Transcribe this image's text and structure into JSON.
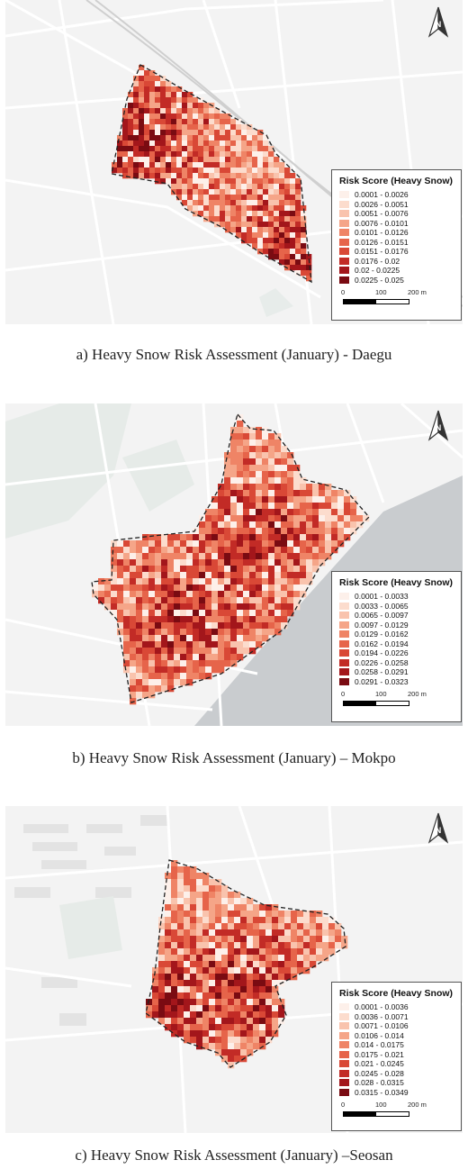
{
  "panels": [
    {
      "id": "daegu",
      "caption": "a) Heavy Snow Risk Assessment (January) - Daegu",
      "legend_title": "Risk Score (Heavy Snow)",
      "classes": [
        "0.0001 - 0.0026",
        "0.0026 - 0.0051",
        "0.0051 - 0.0076",
        "0.0076 - 0.0101",
        "0.0101 - 0.0126",
        "0.0126 - 0.0151",
        "0.0151 - 0.0176",
        "0.0176 - 0.02",
        "0.02 - 0.0225",
        "0.0225 - 0.025"
      ],
      "scale_labels": [
        "0",
        "100",
        "200 m"
      ]
    },
    {
      "id": "mokpo",
      "caption": "b) Heavy Snow Risk Assessment (January) – Mokpo",
      "legend_title": "Risk Score (Heavy Snow)",
      "classes": [
        "0.0001 - 0.0033",
        "0.0033 - 0.0065",
        "0.0065 - 0.0097",
        "0.0097 - 0.0129",
        "0.0129 - 0.0162",
        "0.0162 - 0.0194",
        "0.0194 - 0.0226",
        "0.0226 - 0.0258",
        "0.0258 - 0.0291",
        "0.0291 - 0.0323"
      ],
      "scale_labels": [
        "0",
        "100",
        "200 m"
      ]
    },
    {
      "id": "seosan",
      "caption": "c) Heavy Snow Risk Assessment (January) –Seosan",
      "legend_title": "Risk Score (Heavy Snow)",
      "classes": [
        "0.0001 - 0.0036",
        "0.0036 - 0.0071",
        "0.0071 - 0.0106",
        "0.0106 - 0.014",
        "0.014 - 0.0175",
        "0.0175 - 0.021",
        "0.021 - 0.0245",
        "0.0245 - 0.028",
        "0.028 - 0.0315",
        "0.0315 - 0.0349"
      ],
      "scale_labels": [
        "0",
        "100",
        "200 m"
      ]
    }
  ],
  "palette": [
    "#fdf0ea",
    "#fcdccd",
    "#f9c3ad",
    "#f5a588",
    "#ef8466",
    "#e6644a",
    "#d94836",
    "#c22b26",
    "#a3161b",
    "#7a0b12"
  ],
  "icons": {
    "north_arrow": "north-arrow-icon"
  }
}
